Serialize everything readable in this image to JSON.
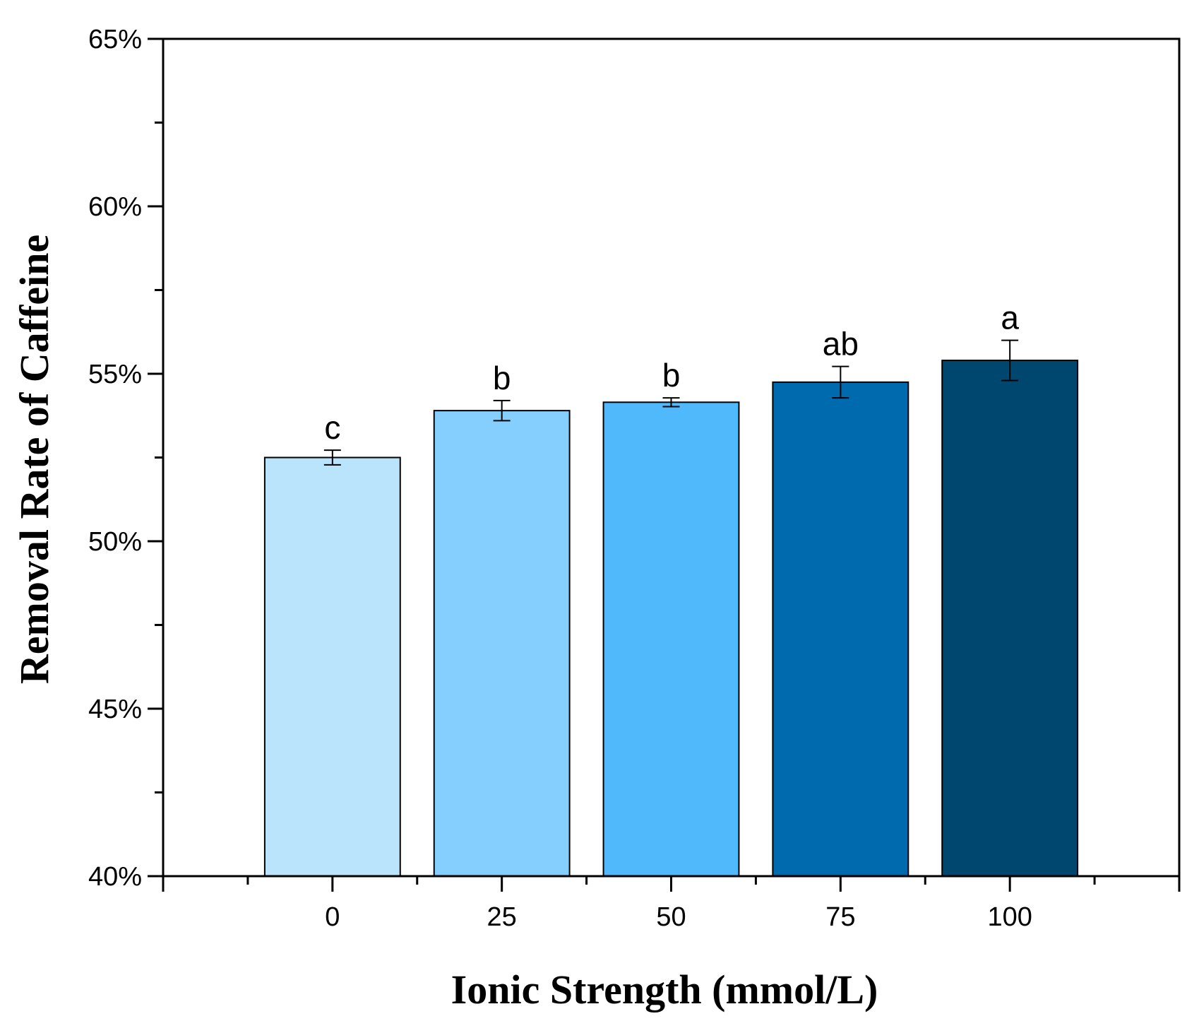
{
  "chart_data": {
    "type": "bar",
    "title": "",
    "xlabel": "Ionic Strength (mmol/L)",
    "ylabel": "Removal Rate of Caffeine",
    "categories": [
      "0",
      "25",
      "50",
      "75",
      "100"
    ],
    "values": [
      52.5,
      53.9,
      54.15,
      54.75,
      55.4
    ],
    "errors": [
      0.22,
      0.3,
      0.13,
      0.47,
      0.6
    ],
    "significance": [
      "c",
      "b",
      "b",
      "ab",
      "a"
    ],
    "colors": [
      "#b9e4fc",
      "#84cffd",
      "#4fb9fc",
      "#006aaf",
      "#00476f"
    ],
    "ylim": [
      40,
      65
    ],
    "yticks": [
      40,
      45,
      50,
      55,
      60,
      65
    ],
    "ytick_labels": [
      "40%",
      "45%",
      "50%",
      "55%",
      "60%",
      "65%"
    ],
    "grid": false,
    "legend": "none"
  }
}
